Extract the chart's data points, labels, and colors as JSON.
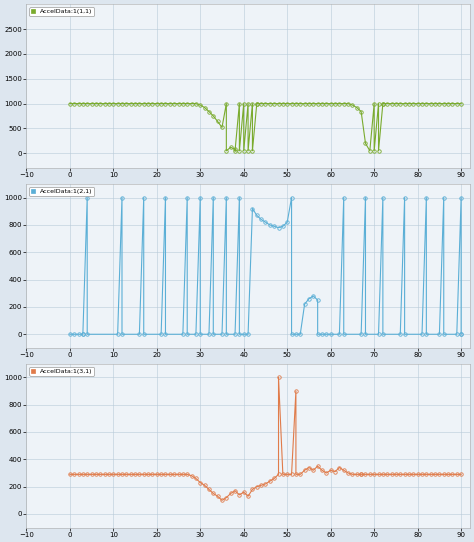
{
  "title1": "AccelData:1(1,1)",
  "title2": "AccelData:1(2,1)",
  "title3": "AccelData:1(3,1)",
  "color1": "#7aab2e",
  "color2": "#5bafd6",
  "color3": "#e07b4a",
  "legend_color1": "#7aab2e",
  "legend_color2": "#5bafd6",
  "legend_color3": "#e07b4a",
  "bg_color": "#dde6ef",
  "plot_bg": "#eef3f8",
  "grid_color": "#b8cad8",
  "xlim": [
    -5,
    92
  ],
  "ylim1": [
    -300,
    3000
  ],
  "yticks1": [
    0,
    500,
    1000,
    1500,
    2000,
    2500
  ],
  "ylim2": [
    -100,
    1100
  ],
  "yticks2": [
    0,
    200,
    400,
    600,
    800,
    1000
  ],
  "ylim3": [
    -100,
    1100
  ],
  "yticks3": [
    0,
    200,
    400,
    600,
    800,
    1000
  ],
  "markersize": 2.5,
  "linewidth": 0.8,
  "tick_fontsize": 5
}
